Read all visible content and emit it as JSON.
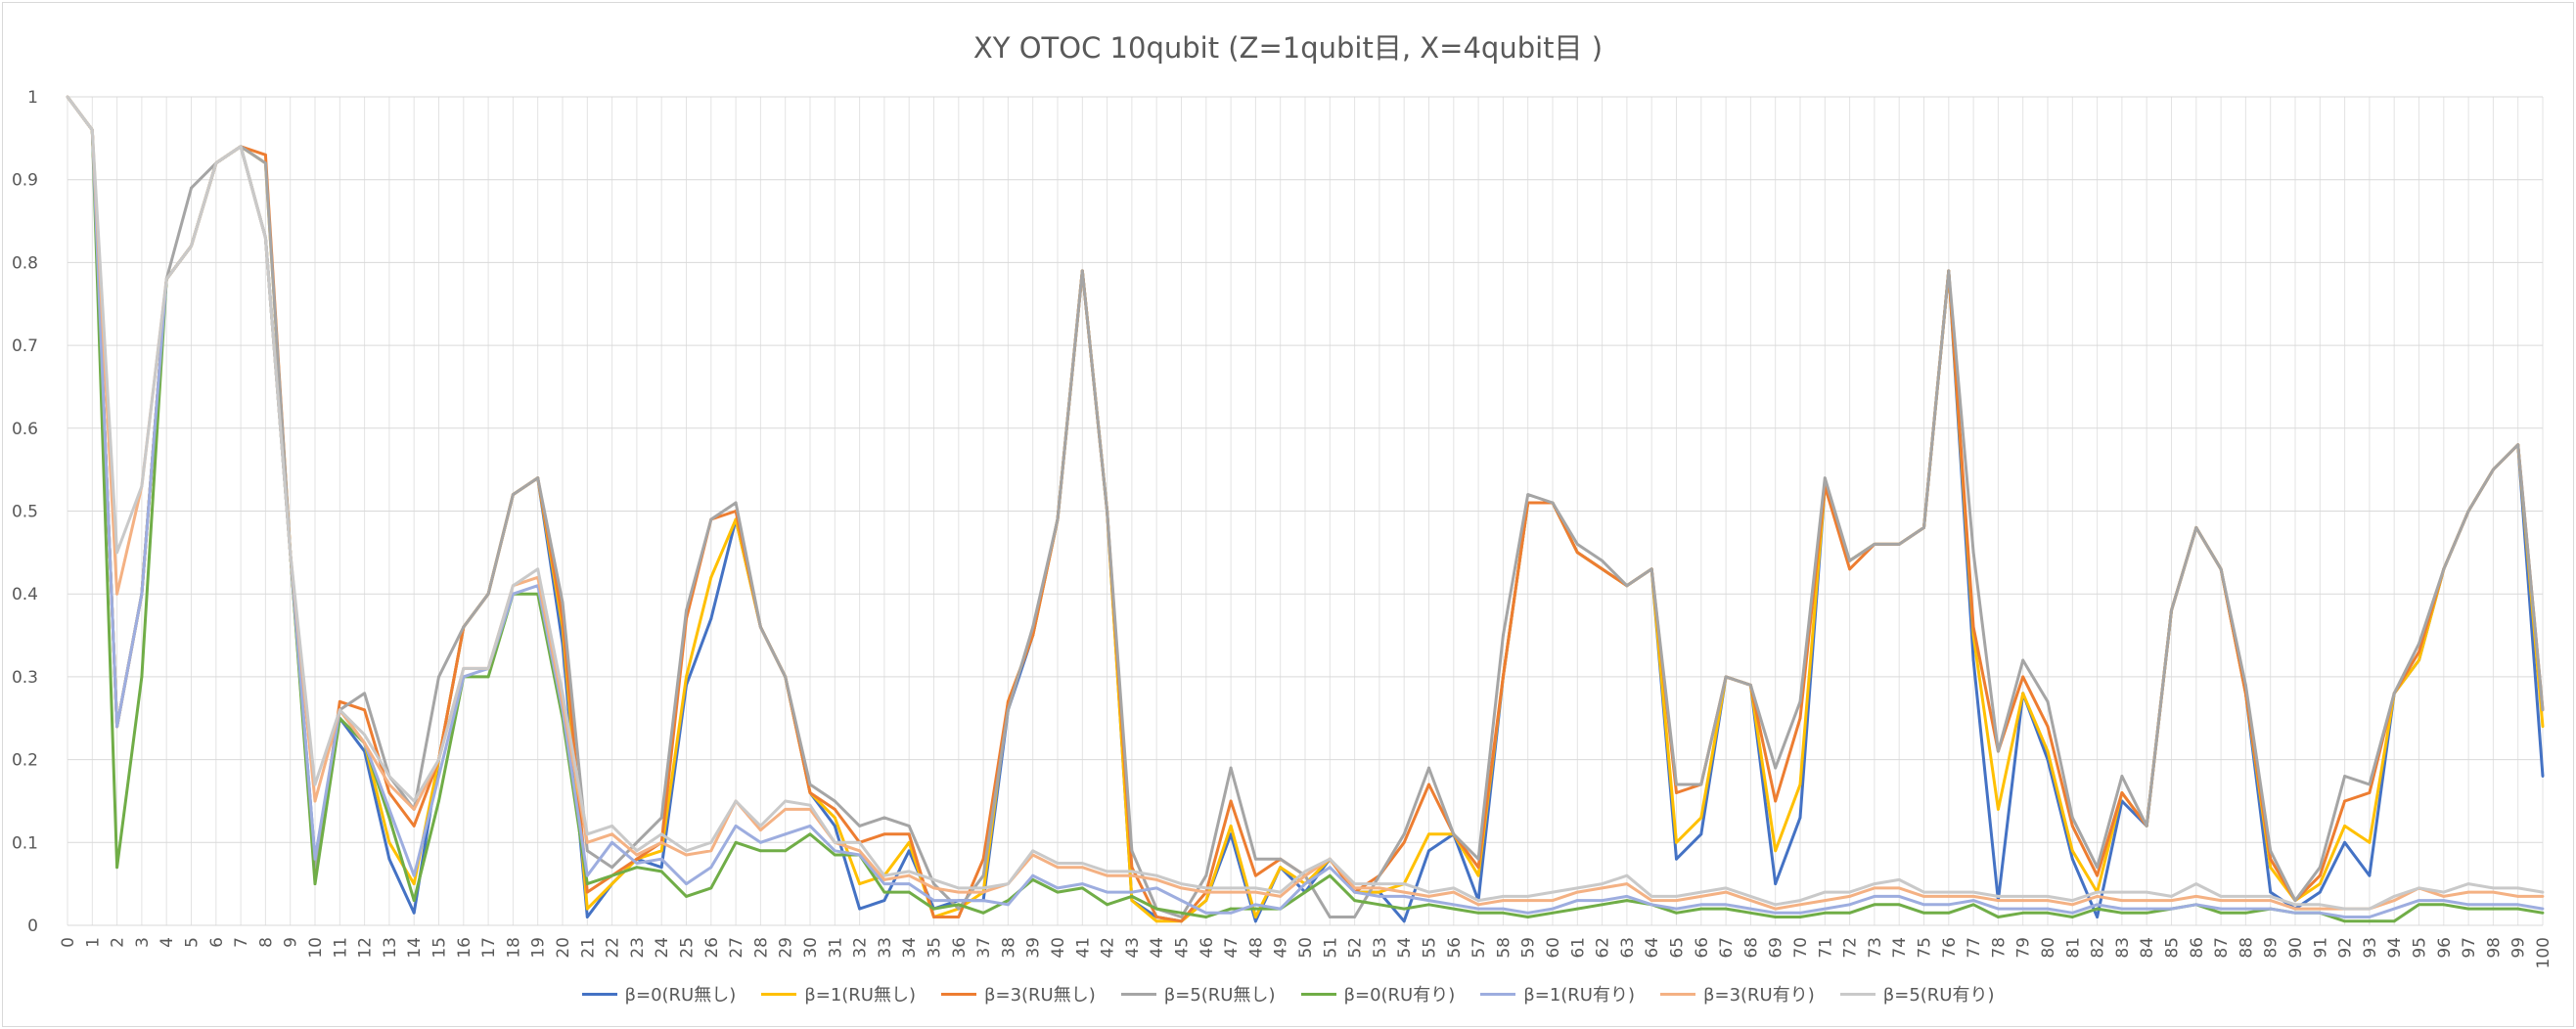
{
  "chart_data": {
    "type": "line",
    "title": "XY OTOC 10qubit (Z=1qubit目, X=4qubit目 )",
    "xlabel": "",
    "ylabel": "",
    "ylim": [
      0,
      1
    ],
    "xlim": [
      0,
      100
    ],
    "y_ticks": [
      "0",
      "0.1",
      "0.2",
      "0.3",
      "0.4",
      "0.5",
      "0.6",
      "0.7",
      "0.8",
      "0.9",
      "1"
    ],
    "grid": true,
    "legend_position": "bottom",
    "x": [
      0,
      1,
      2,
      3,
      4,
      5,
      6,
      7,
      8,
      9,
      10,
      11,
      12,
      13,
      14,
      15,
      16,
      17,
      18,
      19,
      20,
      21,
      22,
      23,
      24,
      25,
      26,
      27,
      28,
      29,
      30,
      31,
      32,
      33,
      34,
      35,
      36,
      37,
      38,
      39,
      40,
      41,
      42,
      43,
      44,
      45,
      46,
      47,
      48,
      49,
      50,
      51,
      52,
      53,
      54,
      55,
      56,
      57,
      58,
      59,
      60,
      61,
      62,
      63,
      64,
      65,
      66,
      67,
      68,
      69,
      70,
      71,
      72,
      73,
      74,
      75,
      76,
      77,
      78,
      79,
      80,
      81,
      82,
      83,
      84,
      85,
      86,
      87,
      88,
      89,
      90,
      91,
      92,
      93,
      94,
      95,
      96,
      97,
      98,
      99,
      100
    ],
    "series": [
      {
        "name": "β=0(RU無し)",
        "color": "#4472C4",
        "values": [
          1,
          0.96,
          0.24,
          0.4,
          0.78,
          0.82,
          0.92,
          0.94,
          0.83,
          0.45,
          0.08,
          0.25,
          0.21,
          0.08,
          0.015,
          0.2,
          0.36,
          0.4,
          0.52,
          0.54,
          0.34,
          0.01,
          0.05,
          0.08,
          0.07,
          0.29,
          0.37,
          0.49,
          0.36,
          0.3,
          0.16,
          0.12,
          0.02,
          0.03,
          0.09,
          0.02,
          0.03,
          0.03,
          0.26,
          0.35,
          0.49,
          0.79,
          0.5,
          0.03,
          0.01,
          0.005,
          0.03,
          0.11,
          0.005,
          0.07,
          0.04,
          0.08,
          0.04,
          0.04,
          0.005,
          0.09,
          0.11,
          0.03,
          0.3,
          0.51,
          0.51,
          0.45,
          0.43,
          0.41,
          0.43,
          0.08,
          0.11,
          0.3,
          0.29,
          0.05,
          0.13,
          0.53,
          0.44,
          0.46,
          0.46,
          0.48,
          0.79,
          0.32,
          0.03,
          0.28,
          0.2,
          0.08,
          0.01,
          0.15,
          0.12,
          0.38,
          0.48,
          0.43,
          0.28,
          0.04,
          0.02,
          0.04,
          0.1,
          0.06,
          0.28,
          0.32,
          0.43,
          0.5,
          0.55,
          0.58,
          0.18
        ]
      },
      {
        "name": "β=1(RU無し)",
        "color": "#FFC000",
        "values": [
          1,
          0.96,
          0.24,
          0.4,
          0.78,
          0.82,
          0.92,
          0.94,
          0.92,
          0.45,
          0.06,
          0.26,
          0.22,
          0.1,
          0.05,
          0.2,
          0.36,
          0.4,
          0.52,
          0.54,
          0.36,
          0.02,
          0.05,
          0.08,
          0.09,
          0.3,
          0.42,
          0.49,
          0.36,
          0.3,
          0.16,
          0.13,
          0.05,
          0.06,
          0.1,
          0.01,
          0.02,
          0.04,
          0.27,
          0.35,
          0.49,
          0.79,
          0.5,
          0.03,
          0.005,
          0.005,
          0.03,
          0.12,
          0.01,
          0.07,
          0.05,
          0.08,
          0.04,
          0.04,
          0.05,
          0.11,
          0.11,
          0.06,
          0.3,
          0.51,
          0.51,
          0.45,
          0.43,
          0.41,
          0.43,
          0.1,
          0.13,
          0.3,
          0.29,
          0.09,
          0.17,
          0.53,
          0.44,
          0.46,
          0.46,
          0.48,
          0.79,
          0.35,
          0.14,
          0.28,
          0.21,
          0.09,
          0.04,
          0.16,
          0.12,
          0.38,
          0.48,
          0.43,
          0.28,
          0.07,
          0.03,
          0.05,
          0.12,
          0.1,
          0.28,
          0.32,
          0.43,
          0.5,
          0.55,
          0.58,
          0.24
        ]
      },
      {
        "name": "β=3(RU無し)",
        "color": "#ED7D31",
        "values": [
          1,
          0.96,
          0.24,
          0.4,
          0.78,
          0.82,
          0.92,
          0.94,
          0.93,
          0.45,
          0.06,
          0.27,
          0.26,
          0.16,
          0.12,
          0.2,
          0.36,
          0.4,
          0.52,
          0.54,
          0.37,
          0.04,
          0.06,
          0.08,
          0.1,
          0.37,
          0.49,
          0.5,
          0.36,
          0.3,
          0.16,
          0.14,
          0.1,
          0.11,
          0.11,
          0.01,
          0.01,
          0.08,
          0.27,
          0.35,
          0.49,
          0.79,
          0.5,
          0.07,
          0.01,
          0.005,
          0.04,
          0.15,
          0.06,
          0.08,
          0.06,
          0.08,
          0.04,
          0.06,
          0.1,
          0.17,
          0.11,
          0.07,
          0.3,
          0.51,
          0.51,
          0.45,
          0.43,
          0.41,
          0.43,
          0.16,
          0.17,
          0.3,
          0.29,
          0.15,
          0.25,
          0.53,
          0.43,
          0.46,
          0.46,
          0.48,
          0.79,
          0.36,
          0.21,
          0.3,
          0.24,
          0.12,
          0.06,
          0.16,
          0.12,
          0.38,
          0.48,
          0.43,
          0.28,
          0.08,
          0.03,
          0.06,
          0.15,
          0.16,
          0.28,
          0.33,
          0.43,
          0.5,
          0.55,
          0.58,
          0.26
        ]
      },
      {
        "name": "β=5(RU無し)",
        "color": "#A5A5A5",
        "values": [
          1,
          0.96,
          0.24,
          0.4,
          0.78,
          0.89,
          0.92,
          0.94,
          0.92,
          0.45,
          0.07,
          0.26,
          0.28,
          0.18,
          0.14,
          0.3,
          0.36,
          0.4,
          0.52,
          0.54,
          0.39,
          0.09,
          0.07,
          0.1,
          0.13,
          0.38,
          0.49,
          0.51,
          0.36,
          0.3,
          0.17,
          0.15,
          0.12,
          0.13,
          0.12,
          0.05,
          0.02,
          0.06,
          0.26,
          0.36,
          0.49,
          0.79,
          0.5,
          0.09,
          0.02,
          0.01,
          0.06,
          0.19,
          0.08,
          0.08,
          0.06,
          0.01,
          0.01,
          0.06,
          0.11,
          0.19,
          0.11,
          0.08,
          0.35,
          0.52,
          0.51,
          0.46,
          0.44,
          0.41,
          0.43,
          0.17,
          0.17,
          0.3,
          0.29,
          0.19,
          0.27,
          0.54,
          0.44,
          0.46,
          0.46,
          0.48,
          0.79,
          0.45,
          0.21,
          0.32,
          0.27,
          0.13,
          0.07,
          0.18,
          0.12,
          0.38,
          0.48,
          0.43,
          0.29,
          0.09,
          0.03,
          0.07,
          0.18,
          0.17,
          0.28,
          0.34,
          0.43,
          0.5,
          0.55,
          0.58,
          0.26
        ]
      },
      {
        "name": "β=0(RU有り)",
        "color": "#70AD47",
        "values": [
          1,
          0.96,
          0.07,
          0.3,
          0.78,
          0.82,
          0.92,
          0.94,
          0.83,
          0.45,
          0.05,
          0.25,
          0.22,
          0.13,
          0.03,
          0.15,
          0.3,
          0.3,
          0.4,
          0.4,
          0.25,
          0.05,
          0.06,
          0.07,
          0.065,
          0.035,
          0.045,
          0.1,
          0.09,
          0.09,
          0.11,
          0.085,
          0.085,
          0.04,
          0.04,
          0.02,
          0.025,
          0.015,
          0.03,
          0.055,
          0.04,
          0.045,
          0.025,
          0.035,
          0.02,
          0.015,
          0.01,
          0.02,
          0.02,
          0.02,
          0.04,
          0.06,
          0.03,
          0.025,
          0.02,
          0.025,
          0.02,
          0.015,
          0.015,
          0.01,
          0.015,
          0.02,
          0.025,
          0.03,
          0.025,
          0.015,
          0.02,
          0.02,
          0.015,
          0.01,
          0.01,
          0.015,
          0.015,
          0.025,
          0.025,
          0.015,
          0.015,
          0.025,
          0.01,
          0.015,
          0.015,
          0.01,
          0.02,
          0.015,
          0.015,
          0.02,
          0.025,
          0.015,
          0.015,
          0.02,
          0.015,
          0.015,
          0.005,
          0.005,
          0.005,
          0.025,
          0.025,
          0.02,
          0.02,
          0.02,
          0.015
        ]
      },
      {
        "name": "β=1(RU有り)",
        "color": "#9DADDF",
        "values": [
          1,
          0.96,
          0.24,
          0.4,
          0.78,
          0.82,
          0.92,
          0.94,
          0.83,
          0.45,
          0.08,
          0.26,
          0.22,
          0.14,
          0.06,
          0.18,
          0.3,
          0.31,
          0.4,
          0.41,
          0.26,
          0.06,
          0.1,
          0.075,
          0.08,
          0.05,
          0.07,
          0.12,
          0.1,
          0.11,
          0.12,
          0.09,
          0.085,
          0.05,
          0.05,
          0.03,
          0.03,
          0.03,
          0.025,
          0.06,
          0.045,
          0.05,
          0.04,
          0.04,
          0.045,
          0.03,
          0.015,
          0.015,
          0.025,
          0.02,
          0.05,
          0.07,
          0.04,
          0.035,
          0.035,
          0.03,
          0.025,
          0.02,
          0.02,
          0.015,
          0.02,
          0.03,
          0.03,
          0.035,
          0.025,
          0.02,
          0.025,
          0.025,
          0.02,
          0.015,
          0.015,
          0.02,
          0.025,
          0.035,
          0.035,
          0.025,
          0.025,
          0.03,
          0.02,
          0.02,
          0.02,
          0.015,
          0.025,
          0.02,
          0.02,
          0.02,
          0.025,
          0.02,
          0.02,
          0.02,
          0.015,
          0.015,
          0.01,
          0.01,
          0.02,
          0.03,
          0.03,
          0.025,
          0.025,
          0.025,
          0.02
        ]
      },
      {
        "name": "β=3(RU有り)",
        "color": "#F4B183",
        "values": [
          1,
          0.96,
          0.4,
          0.53,
          0.78,
          0.82,
          0.92,
          0.94,
          0.83,
          0.45,
          0.15,
          0.26,
          0.22,
          0.17,
          0.14,
          0.2,
          0.31,
          0.31,
          0.41,
          0.42,
          0.27,
          0.1,
          0.11,
          0.085,
          0.1,
          0.085,
          0.09,
          0.15,
          0.115,
          0.14,
          0.14,
          0.1,
          0.09,
          0.055,
          0.06,
          0.045,
          0.04,
          0.04,
          0.05,
          0.085,
          0.07,
          0.07,
          0.06,
          0.06,
          0.055,
          0.045,
          0.04,
          0.04,
          0.04,
          0.035,
          0.06,
          0.08,
          0.045,
          0.045,
          0.04,
          0.035,
          0.04,
          0.025,
          0.03,
          0.03,
          0.03,
          0.04,
          0.045,
          0.05,
          0.03,
          0.03,
          0.035,
          0.04,
          0.03,
          0.02,
          0.025,
          0.03,
          0.035,
          0.045,
          0.045,
          0.035,
          0.035,
          0.035,
          0.03,
          0.03,
          0.03,
          0.025,
          0.035,
          0.03,
          0.03,
          0.03,
          0.035,
          0.03,
          0.03,
          0.03,
          0.02,
          0.02,
          0.02,
          0.02,
          0.03,
          0.045,
          0.035,
          0.04,
          0.04,
          0.035,
          0.035
        ]
      },
      {
        "name": "β=5(RU有り)",
        "color": "#C9C9C9",
        "values": [
          1,
          0.96,
          0.45,
          0.53,
          0.78,
          0.82,
          0.92,
          0.94,
          0.83,
          0.45,
          0.17,
          0.26,
          0.23,
          0.18,
          0.15,
          0.2,
          0.31,
          0.31,
          0.41,
          0.43,
          0.28,
          0.11,
          0.12,
          0.09,
          0.11,
          0.09,
          0.1,
          0.15,
          0.12,
          0.15,
          0.145,
          0.1,
          0.1,
          0.06,
          0.065,
          0.055,
          0.045,
          0.045,
          0.05,
          0.09,
          0.075,
          0.075,
          0.065,
          0.065,
          0.06,
          0.05,
          0.045,
          0.045,
          0.045,
          0.04,
          0.065,
          0.08,
          0.05,
          0.05,
          0.05,
          0.04,
          0.045,
          0.03,
          0.035,
          0.035,
          0.04,
          0.045,
          0.05,
          0.06,
          0.035,
          0.035,
          0.04,
          0.045,
          0.035,
          0.025,
          0.03,
          0.04,
          0.04,
          0.05,
          0.055,
          0.04,
          0.04,
          0.04,
          0.035,
          0.035,
          0.035,
          0.03,
          0.04,
          0.04,
          0.04,
          0.035,
          0.05,
          0.035,
          0.035,
          0.035,
          0.025,
          0.025,
          0.02,
          0.02,
          0.035,
          0.045,
          0.04,
          0.05,
          0.045,
          0.045,
          0.04
        ]
      }
    ]
  }
}
